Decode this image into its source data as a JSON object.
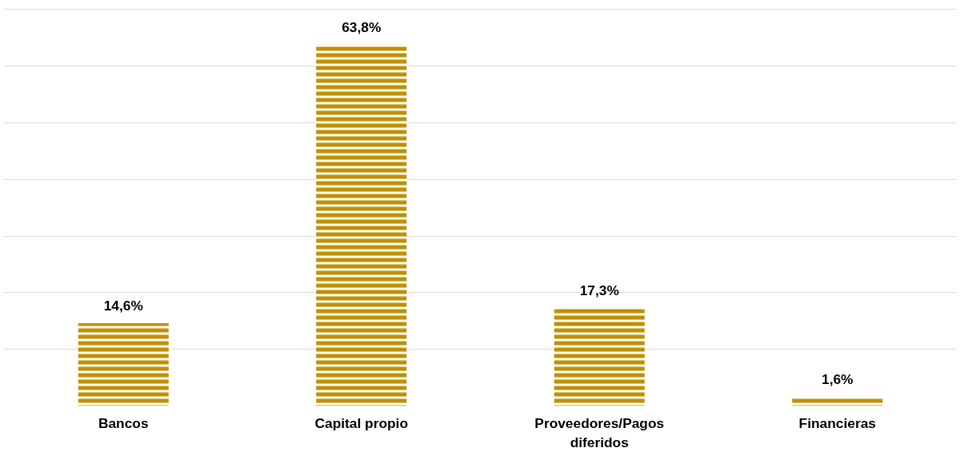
{
  "chart_data": {
    "type": "bar",
    "categories": [
      "Bancos",
      "Capital propio",
      "Proveedores/Pagos diferidos",
      "Financieras"
    ],
    "values": [
      14.6,
      63.8,
      17.3,
      1.6
    ],
    "value_labels": [
      "14,6%",
      "63,8%",
      "17,3%",
      "1,6%"
    ],
    "color": "#bf9000",
    "tick_labels": "x",
    "grid": "y"
  }
}
